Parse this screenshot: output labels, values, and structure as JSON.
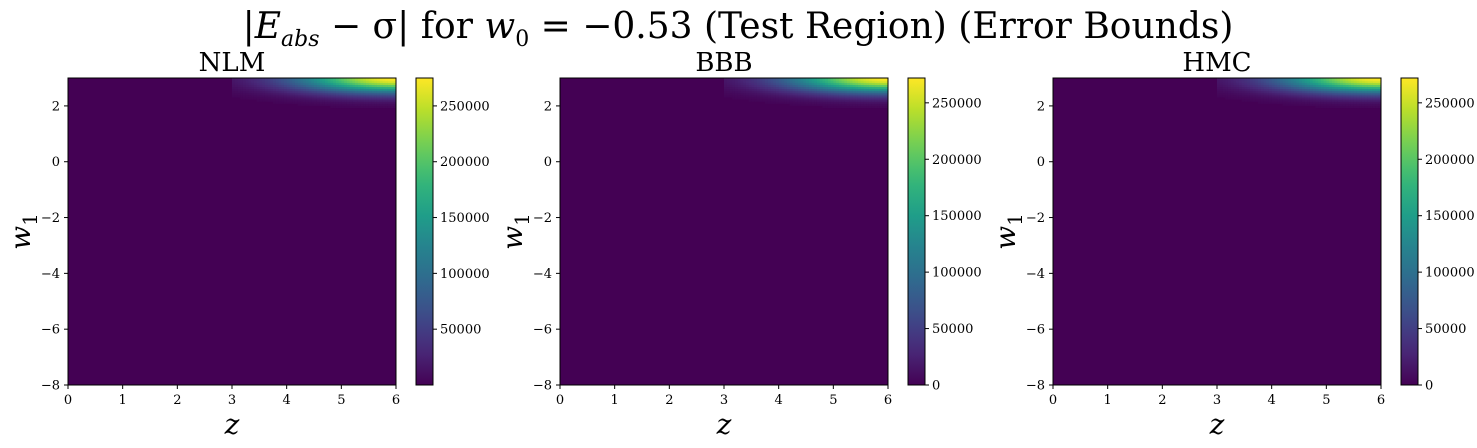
{
  "suptitle": {
    "abs_open": "|",
    "E": "E",
    "sub": "abs",
    "minus_sigma": " − σ",
    "abs_close": "|",
    "for_text": " for ",
    "w": "w",
    "w_sub": "0",
    "value_text": " = −0.53 (Test Region) (Error Bounds)"
  },
  "colormap": "viridis",
  "colors": {
    "low": "#440154",
    "high": "#fde725"
  },
  "chart_data": [
    {
      "type": "heatmap",
      "title": "NLM",
      "xlabel": "z",
      "ylabel": {
        "base": "w",
        "sub": "1"
      },
      "xlim": [
        0,
        6
      ],
      "ylim": [
        -8,
        3
      ],
      "xticks": [
        0,
        1,
        2,
        3,
        4,
        5,
        6
      ],
      "yticks": [
        -8,
        -6,
        -4,
        -2,
        0,
        2
      ],
      "value_max": 275000,
      "hotspot": {
        "z": 6,
        "w1": 3,
        "value": 275000
      },
      "colorbar": {
        "min": 0,
        "max": 275000,
        "ticks": [
          50000,
          100000,
          150000,
          200000,
          250000
        ]
      }
    },
    {
      "type": "heatmap",
      "title": "BBB",
      "xlabel": "z",
      "ylabel": {
        "base": "w",
        "sub": "1"
      },
      "xlim": [
        0,
        6
      ],
      "ylim": [
        -8,
        3
      ],
      "xticks": [
        0,
        1,
        2,
        3,
        4,
        5,
        6
      ],
      "yticks": [
        -8,
        -6,
        -4,
        -2,
        0,
        2
      ],
      "value_max": 272000,
      "hotspot": {
        "z": 6,
        "w1": 3,
        "value": 272000
      },
      "colorbar": {
        "min": 0,
        "max": 272000,
        "ticks": [
          0,
          50000,
          100000,
          150000,
          200000,
          250000
        ]
      }
    },
    {
      "type": "heatmap",
      "title": "HMC",
      "xlabel": "z",
      "ylabel": {
        "base": "w",
        "sub": "1"
      },
      "xlim": [
        0,
        6
      ],
      "ylim": [
        -8,
        3
      ],
      "xticks": [
        0,
        1,
        2,
        3,
        4,
        5,
        6
      ],
      "yticks": [
        -8,
        -6,
        -4,
        -2,
        0,
        2
      ],
      "value_max": 272000,
      "hotspot": {
        "z": 6,
        "w1": 3,
        "value": 272000
      },
      "colorbar": {
        "min": 0,
        "max": 272000,
        "ticks": [
          0,
          50000,
          100000,
          150000,
          200000,
          250000
        ]
      }
    }
  ]
}
